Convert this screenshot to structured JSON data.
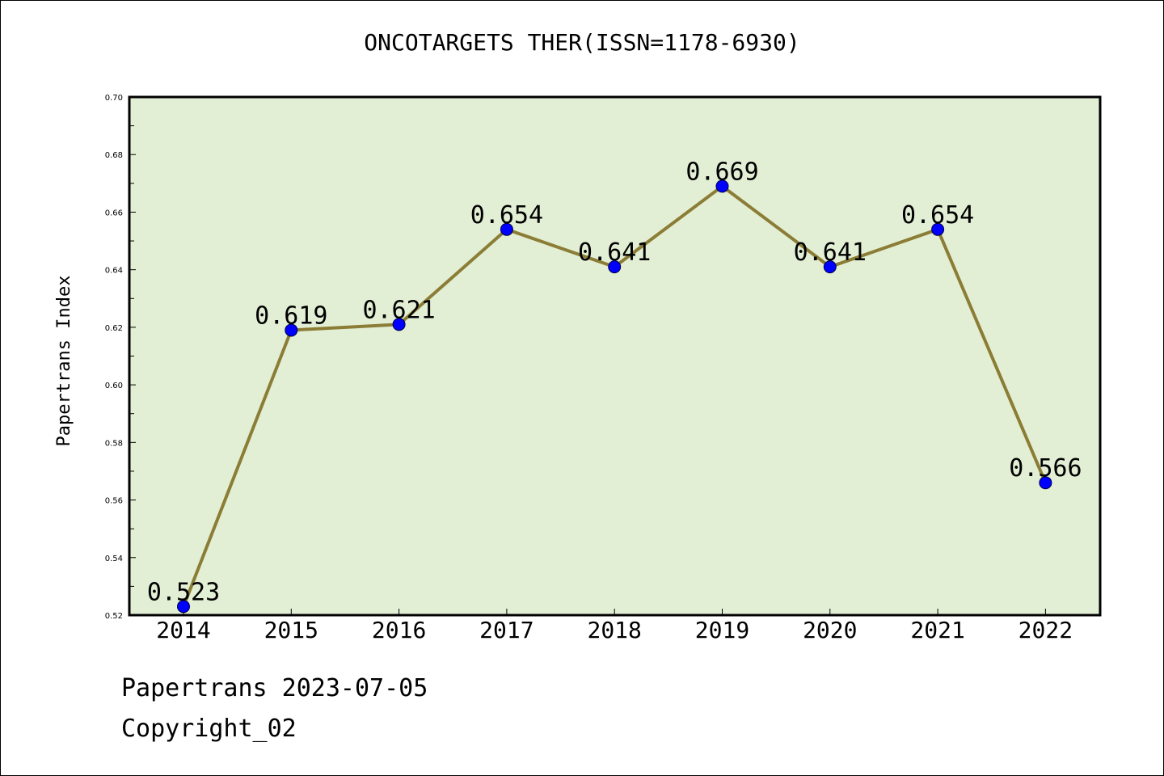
{
  "chart_data": {
    "type": "line",
    "title": "ONCOTARGETS THER(ISSN=1178-6930)",
    "ylabel": "Papertrans Index",
    "xlabel": "",
    "categories": [
      "2014",
      "2015",
      "2016",
      "2017",
      "2018",
      "2019",
      "2020",
      "2021",
      "2022"
    ],
    "series": [
      {
        "values": [
          0.523,
          0.619,
          0.621,
          0.654,
          0.641,
          0.669,
          0.641,
          0.654,
          0.566
        ],
        "data_labels": [
          "0.523",
          "0.619",
          "0.621",
          "0.654",
          "0.641",
          "0.669",
          "0.641",
          "0.654",
          "0.566"
        ]
      }
    ],
    "ylim": [
      0.52,
      0.7
    ],
    "yticks": [
      "0.52",
      "0.54",
      "0.56",
      "0.58",
      "0.60",
      "0.62",
      "0.64",
      "0.66",
      "0.68",
      "0.70"
    ],
    "grid": false,
    "colors": {
      "plot_background": "#e2efd5",
      "line": "#8b7d35",
      "marker": "#0000ff"
    }
  },
  "footer": {
    "date_line": "Papertrans 2023-07-05",
    "copyright": "Copyright_02"
  }
}
